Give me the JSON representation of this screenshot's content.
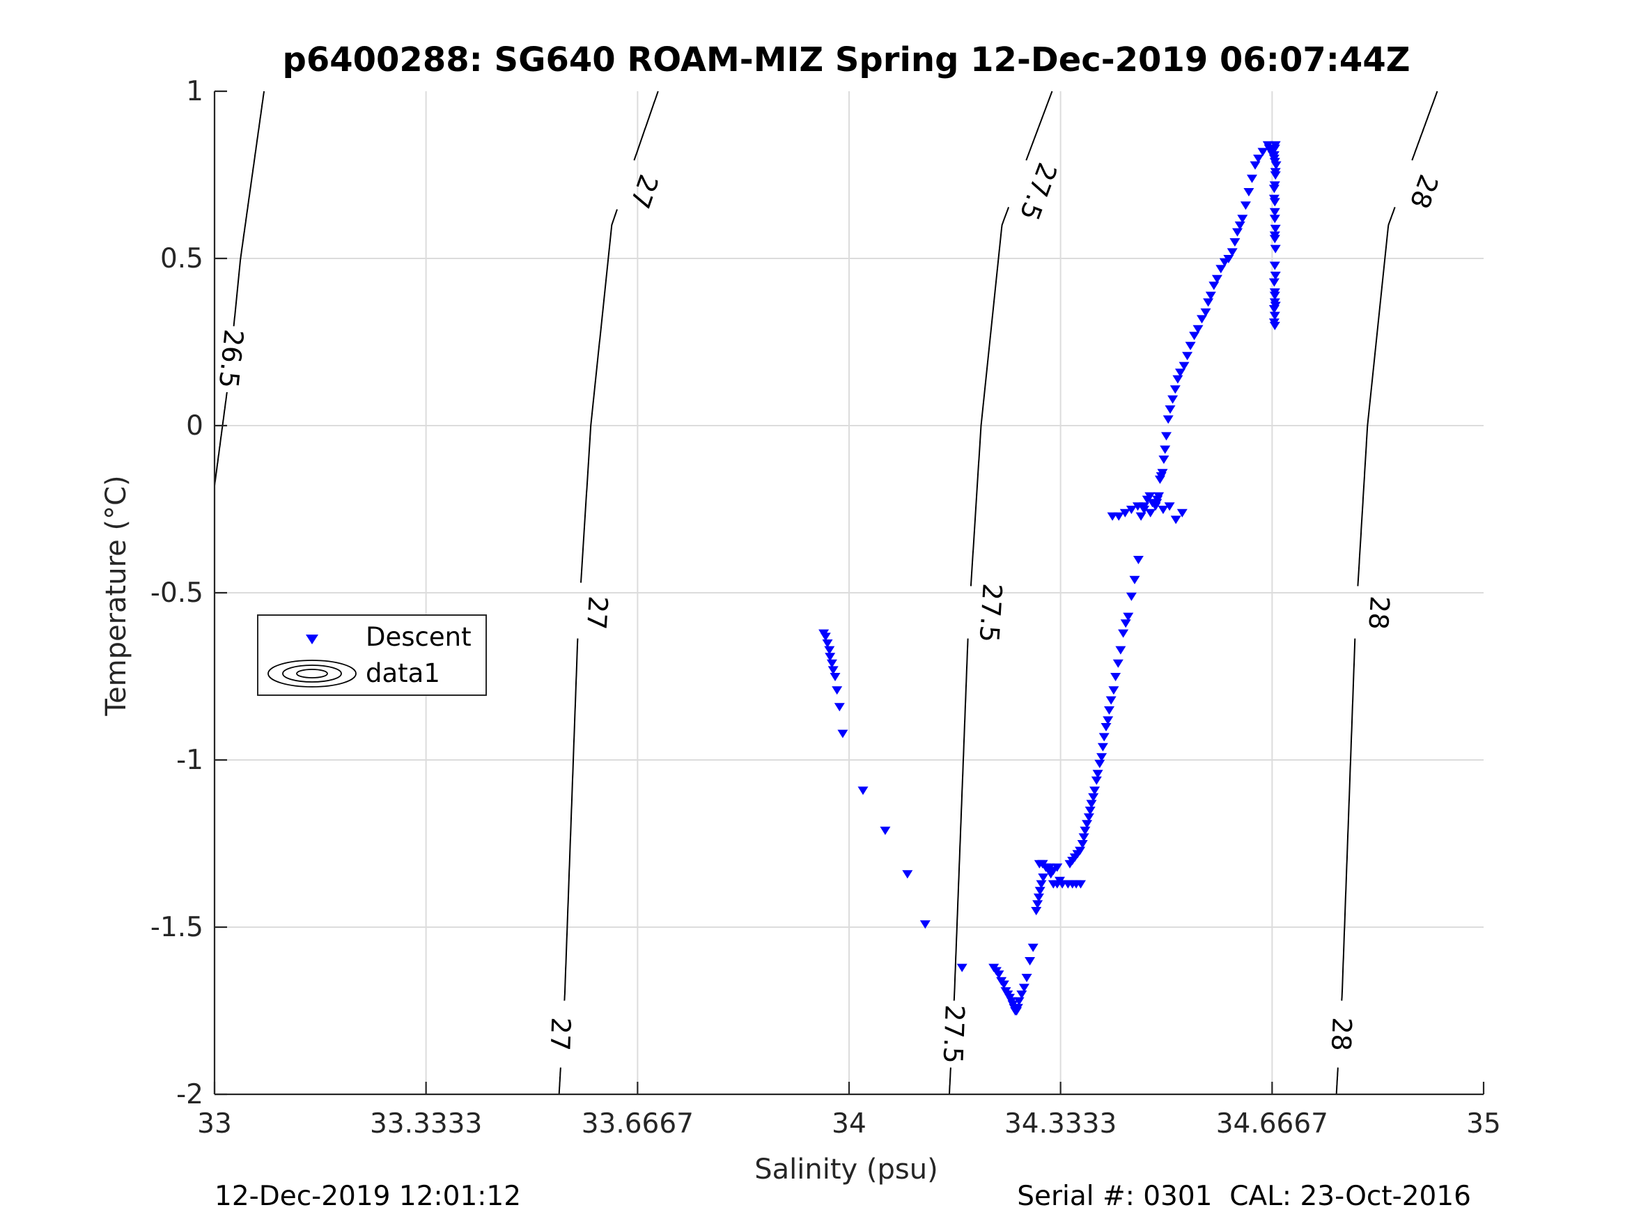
{
  "chart_data": {
    "type": "scatter",
    "title": "p6400288: SG640 ROAM-MIZ Spring 12-Dec-2019 06:07:44Z",
    "xlabel": "Salinity (psu)",
    "ylabel": "Temperature (°C)",
    "xlim": [
      33,
      35
    ],
    "ylim": [
      -2,
      1
    ],
    "x_ticks": [
      33,
      33.3333,
      33.6667,
      34,
      34.3333,
      34.6667,
      35
    ],
    "x_tick_labels": [
      "33",
      "33.3333",
      "33.6667",
      "34",
      "34.3333",
      "34.6667",
      "35"
    ],
    "y_ticks": [
      -2,
      -1.5,
      -1,
      -0.5,
      0,
      0.5,
      1
    ],
    "y_tick_labels": [
      "-2",
      "-1.5",
      "-1",
      "-0.5",
      "0",
      "0.5",
      "1"
    ],
    "grid": true,
    "legend": {
      "placement": "left",
      "entries": [
        {
          "label": "Descent",
          "marker": "triangle-down",
          "color": "#0000ff"
        },
        {
          "label": "data1",
          "marker": "contour",
          "color": "#000000"
        }
      ]
    },
    "contours": [
      {
        "level": "26.5",
        "points": [
          [
            33.0,
            -0.18
          ],
          [
            33.021,
            0.12
          ],
          [
            33.041,
            0.5
          ],
          [
            33.078,
            1.0
          ]
        ],
        "label_positions": [
          [
            33.026,
            0.2
          ]
        ]
      },
      {
        "level": "27",
        "points": [
          [
            33.543,
            -2.0
          ],
          [
            33.552,
            -1.7
          ],
          [
            33.573,
            -0.6
          ],
          [
            33.593,
            0.0
          ],
          [
            33.626,
            0.6
          ],
          [
            33.699,
            1.0
          ]
        ],
        "label_positions": [
          [
            33.545,
            -1.82
          ],
          [
            33.603,
            -0.56
          ],
          [
            33.677,
            0.7
          ]
        ]
      },
      {
        "level": "27.5",
        "points": [
          [
            34.158,
            -2.0
          ],
          [
            34.166,
            -1.7
          ],
          [
            34.188,
            -0.6
          ],
          [
            34.208,
            0.0
          ],
          [
            34.241,
            0.6
          ],
          [
            34.32,
            1.0
          ]
        ],
        "label_positions": [
          [
            34.165,
            -1.82
          ],
          [
            34.223,
            -0.56
          ],
          [
            34.298,
            0.7
          ]
        ]
      },
      {
        "level": "28",
        "points": [
          [
            34.768,
            -2.0
          ],
          [
            34.777,
            -1.7
          ],
          [
            34.798,
            -0.6
          ],
          [
            34.817,
            0.0
          ],
          [
            34.85,
            0.6
          ],
          [
            34.927,
            1.0
          ]
        ],
        "label_positions": [
          [
            34.776,
            -1.82
          ],
          [
            34.835,
            -0.56
          ],
          [
            34.906,
            0.7
          ]
        ]
      }
    ],
    "series": [
      {
        "name": "Descent",
        "marker": "triangle-down",
        "color": "#0000ff",
        "x": [
          33.96,
          33.963,
          33.966,
          33.969,
          33.97,
          33.973,
          33.975,
          33.978,
          33.981,
          33.985,
          33.99,
          34.022,
          34.057,
          34.092,
          34.12,
          34.178,
          34.228,
          34.232,
          34.236,
          34.24,
          34.244,
          34.247,
          34.25,
          34.253,
          34.256,
          34.258,
          34.26,
          34.262,
          34.264,
          34.266,
          34.268,
          34.272,
          34.276,
          34.28,
          34.285,
          34.29,
          34.295,
          34.297,
          34.299,
          34.301,
          34.303,
          34.306,
          34.305,
          34.31,
          34.315,
          34.318,
          34.322,
          34.328,
          34.3,
          34.305,
          34.31,
          34.316,
          34.322,
          34.328,
          34.332,
          34.336,
          34.345,
          34.352,
          34.358,
          34.365,
          34.348,
          34.352,
          34.356,
          34.36,
          34.364,
          34.368,
          34.37,
          34.372,
          34.375,
          34.378,
          34.38,
          34.382,
          34.385,
          34.387,
          34.39,
          34.392,
          34.395,
          34.398,
          34.4,
          34.402,
          34.405,
          34.408,
          34.41,
          34.413,
          34.417,
          34.42,
          34.424,
          34.428,
          34.432,
          34.436,
          34.44,
          34.445,
          34.45,
          34.456,
          34.46,
          34.465,
          34.47,
          34.474,
          34.478,
          34.483,
          34.486,
          34.488,
          34.49,
          34.492,
          34.494,
          34.496,
          34.498,
          34.5,
          34.503,
          34.506,
          34.51,
          34.514,
          34.518,
          34.522,
          34.528,
          34.533,
          34.538,
          34.544,
          34.55,
          34.556,
          34.562,
          34.566,
          34.57,
          34.575,
          34.58,
          34.586,
          34.592,
          34.598,
          34.604,
          34.608,
          34.612,
          34.616,
          34.62,
          34.625,
          34.63,
          34.635,
          34.64,
          34.645,
          34.652,
          34.66,
          34.662,
          34.665,
          34.668,
          34.67,
          34.673,
          34.672,
          34.67,
          34.671,
          34.671,
          34.671,
          34.672,
          34.671,
          34.67,
          34.671,
          34.672,
          34.671,
          34.67,
          34.671,
          34.671,
          34.672,
          34.671,
          34.67,
          34.671,
          34.672,
          34.671,
          34.67,
          34.671,
          34.672,
          34.671,
          34.67,
          34.671,
          34.672
        ],
        "y": [
          -0.62,
          -0.63,
          -0.65,
          -0.67,
          -0.69,
          -0.71,
          -0.73,
          -0.75,
          -0.79,
          -0.84,
          -0.92,
          -1.09,
          -1.21,
          -1.34,
          -1.49,
          -1.62,
          -1.62,
          -1.63,
          -1.64,
          -1.66,
          -1.67,
          -1.69,
          -1.7,
          -1.71,
          -1.72,
          -1.73,
          -1.74,
          -1.75,
          -1.75,
          -1.74,
          -1.72,
          -1.7,
          -1.68,
          -1.65,
          -1.6,
          -1.56,
          -1.45,
          -1.43,
          -1.41,
          -1.39,
          -1.37,
          -1.35,
          -1.31,
          -1.32,
          -1.33,
          -1.34,
          -1.33,
          -1.32,
          -1.31,
          -1.31,
          -1.32,
          -1.32,
          -1.37,
          -1.37,
          -1.36,
          -1.37,
          -1.37,
          -1.37,
          -1.37,
          -1.37,
          -1.31,
          -1.3,
          -1.29,
          -1.28,
          -1.27,
          -1.25,
          -1.23,
          -1.21,
          -1.19,
          -1.17,
          -1.15,
          -1.13,
          -1.11,
          -1.09,
          -1.06,
          -1.04,
          -1.01,
          -0.99,
          -0.96,
          -0.93,
          -0.9,
          -0.88,
          -0.85,
          -0.82,
          -0.79,
          -0.75,
          -0.71,
          -0.67,
          -0.62,
          -0.59,
          -0.57,
          -0.51,
          -0.46,
          -0.4,
          -0.27,
          -0.24,
          -0.22,
          -0.21,
          -0.23,
          -0.24,
          -0.22,
          -0.21,
          -0.16,
          -0.15,
          -0.14,
          -0.1,
          -0.07,
          -0.03,
          0.02,
          0.05,
          0.08,
          0.11,
          0.14,
          0.16,
          0.18,
          0.21,
          0.24,
          0.27,
          0.29,
          0.32,
          0.34,
          0.37,
          0.39,
          0.42,
          0.44,
          0.47,
          0.49,
          0.5,
          0.52,
          0.55,
          0.58,
          0.6,
          0.62,
          0.66,
          0.7,
          0.74,
          0.78,
          0.8,
          0.82,
          0.84,
          0.83,
          0.82,
          0.81,
          0.8,
          0.78,
          0.75,
          0.71,
          0.67,
          0.62,
          0.57,
          0.53,
          0.48,
          0.43,
          0.39,
          0.36,
          0.33,
          0.31,
          0.3,
          0.56,
          0.59,
          0.64,
          0.68,
          0.72,
          0.76,
          0.79,
          0.81,
          0.83,
          0.84,
          0.37,
          0.35,
          0.4,
          0.45
        ]
      },
      {
        "name": "Descent",
        "marker": "triangle-down",
        "color": "#0000ff",
        "x": [
          34.415,
          34.425,
          34.435,
          34.445,
          34.455,
          34.465,
          34.475,
          34.485,
          34.495,
          34.505,
          34.515,
          34.525
        ],
        "y": [
          -0.27,
          -0.27,
          -0.26,
          -0.25,
          -0.24,
          -0.25,
          -0.26,
          -0.23,
          -0.25,
          -0.24,
          -0.28,
          -0.26
        ]
      }
    ]
  },
  "footer": {
    "timestamp": "12-Dec-2019 12:01:12",
    "serial": "Serial #: 0301  CAL: 23-Oct-2016"
  }
}
